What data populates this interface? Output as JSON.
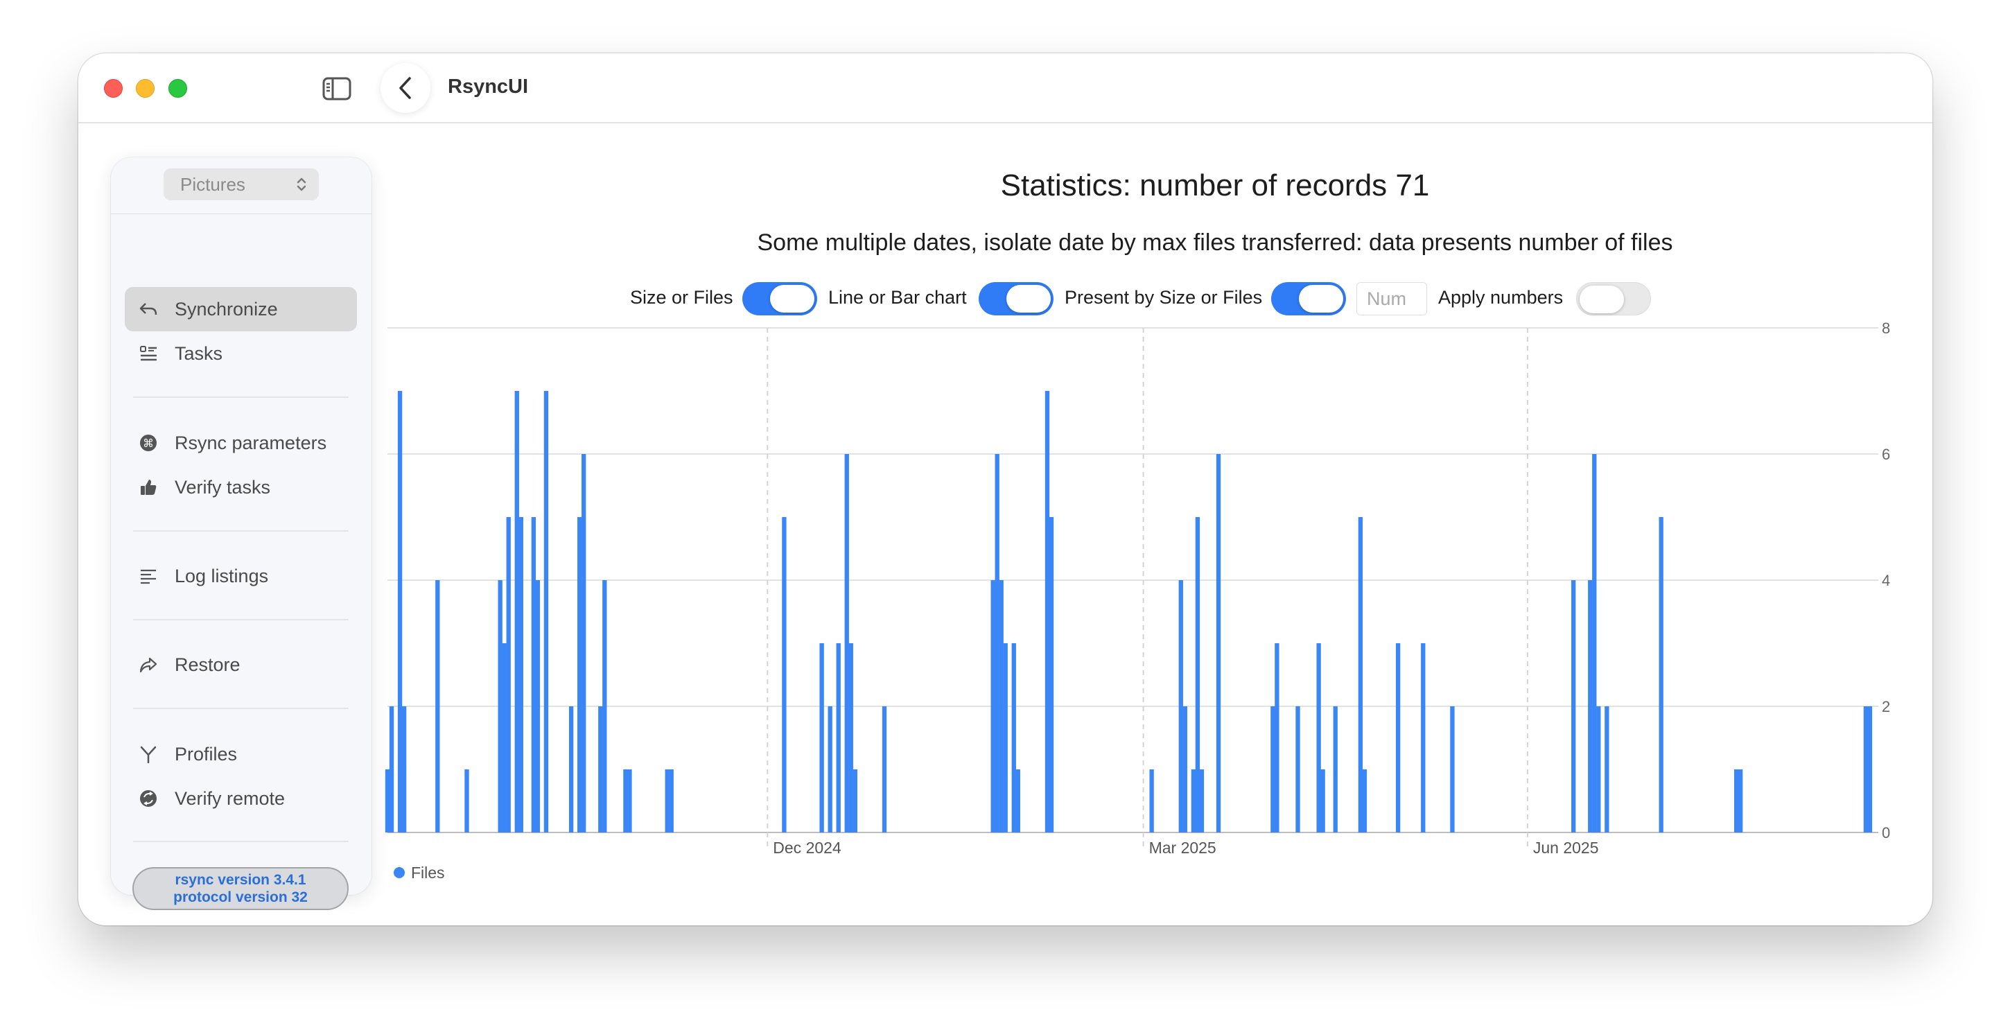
{
  "app": {
    "title": "RsyncUI"
  },
  "sidebar": {
    "profile_selected": "Pictures",
    "items": [
      {
        "label": "Synchronize",
        "icon": "sync-arrow-icon",
        "active": true
      },
      {
        "label": "Tasks",
        "icon": "checklist-icon"
      },
      {
        "label": "Rsync parameters",
        "icon": "command-icon"
      },
      {
        "label": "Verify tasks",
        "icon": "thumbs-up-icon"
      },
      {
        "label": "Log listings",
        "icon": "list-lines-icon"
      },
      {
        "label": "Restore",
        "icon": "share-arrow-icon"
      },
      {
        "label": "Profiles",
        "icon": "branch-icon"
      },
      {
        "label": "Verify remote",
        "icon": "sync-circle-icon"
      }
    ],
    "version_line1": "rsync  version 3.4.1",
    "version_line2": "protocol version 32"
  },
  "main": {
    "title": "Statistics: number of records 71",
    "subtitle": "Some multiple dates, isolate date by max files transferred:  data presents number of files",
    "controls": {
      "size_or_files_label": "Size or Files",
      "size_or_files_on": true,
      "line_or_bar_label": "Line or Bar chart",
      "line_or_bar_on": true,
      "present_by_label": "Present by Size or Files",
      "present_by_on": true,
      "num_placeholder": "Num",
      "apply_numbers_label": "Apply numbers",
      "apply_numbers_on": false
    }
  },
  "colors": {
    "accent": "#2f7cf6",
    "bar": "#3b86f7"
  },
  "chart_data": {
    "type": "bar",
    "legend": [
      "Files"
    ],
    "legend_position": "bottom-left",
    "x_tick_labels": [
      "Dec 2024",
      "Mar 2025",
      "Jun 2025"
    ],
    "x_ticks": [
      "2024-12-01",
      "2025-03-01",
      "2025-06-01"
    ],
    "xlim": [
      "2024-09-01",
      "2025-08-24"
    ],
    "y_ticks": [
      0,
      2,
      4,
      6,
      8
    ],
    "ylim": [
      0,
      8
    ],
    "grid": true,
    "y_axis_position": "right",
    "series": [
      {
        "name": "Files",
        "points": [
          {
            "x": "2024-09-01",
            "y": 1
          },
          {
            "x": "2024-09-02",
            "y": 2
          },
          {
            "x": "2024-09-04",
            "y": 7
          },
          {
            "x": "2024-09-05",
            "y": 2
          },
          {
            "x": "2024-09-13",
            "y": 4
          },
          {
            "x": "2024-09-20",
            "y": 1
          },
          {
            "x": "2024-09-28",
            "y": 4
          },
          {
            "x": "2024-09-29",
            "y": 3
          },
          {
            "x": "2024-09-30",
            "y": 5
          },
          {
            "x": "2024-10-02",
            "y": 7
          },
          {
            "x": "2024-10-03",
            "y": 5
          },
          {
            "x": "2024-10-06",
            "y": 5
          },
          {
            "x": "2024-10-07",
            "y": 4
          },
          {
            "x": "2024-10-09",
            "y": 7
          },
          {
            "x": "2024-10-15",
            "y": 2
          },
          {
            "x": "2024-10-17",
            "y": 5
          },
          {
            "x": "2024-10-18",
            "y": 6
          },
          {
            "x": "2024-10-22",
            "y": 2
          },
          {
            "x": "2024-10-23",
            "y": 4
          },
          {
            "x": "2024-10-28",
            "y": 1
          },
          {
            "x": "2024-10-29",
            "y": 1
          },
          {
            "x": "2024-11-07",
            "y": 1
          },
          {
            "x": "2024-11-08",
            "y": 1
          },
          {
            "x": "2024-12-05",
            "y": 5
          },
          {
            "x": "2024-12-14",
            "y": 3
          },
          {
            "x": "2024-12-16",
            "y": 2
          },
          {
            "x": "2024-12-18",
            "y": 3
          },
          {
            "x": "2024-12-20",
            "y": 6
          },
          {
            "x": "2024-12-21",
            "y": 3
          },
          {
            "x": "2024-12-22",
            "y": 1
          },
          {
            "x": "2024-12-29",
            "y": 2
          },
          {
            "x": "2025-01-24",
            "y": 4
          },
          {
            "x": "2025-01-25",
            "y": 6
          },
          {
            "x": "2025-01-26",
            "y": 4
          },
          {
            "x": "2025-01-27",
            "y": 3
          },
          {
            "x": "2025-01-29",
            "y": 3
          },
          {
            "x": "2025-01-30",
            "y": 1
          },
          {
            "x": "2025-02-06",
            "y": 7
          },
          {
            "x": "2025-02-07",
            "y": 5
          },
          {
            "x": "2025-03-03",
            "y": 1
          },
          {
            "x": "2025-03-10",
            "y": 4
          },
          {
            "x": "2025-03-11",
            "y": 2
          },
          {
            "x": "2025-03-13",
            "y": 1
          },
          {
            "x": "2025-03-14",
            "y": 5
          },
          {
            "x": "2025-03-15",
            "y": 1
          },
          {
            "x": "2025-03-19",
            "y": 6
          },
          {
            "x": "2025-04-01",
            "y": 2
          },
          {
            "x": "2025-04-02",
            "y": 3
          },
          {
            "x": "2025-04-07",
            "y": 2
          },
          {
            "x": "2025-04-12",
            "y": 3
          },
          {
            "x": "2025-04-13",
            "y": 1
          },
          {
            "x": "2025-04-16",
            "y": 2
          },
          {
            "x": "2025-04-22",
            "y": 5
          },
          {
            "x": "2025-04-23",
            "y": 1
          },
          {
            "x": "2025-05-01",
            "y": 3
          },
          {
            "x": "2025-05-07",
            "y": 3
          },
          {
            "x": "2025-05-14",
            "y": 2
          },
          {
            "x": "2025-06-12",
            "y": 4
          },
          {
            "x": "2025-06-16",
            "y": 4
          },
          {
            "x": "2025-06-17",
            "y": 6
          },
          {
            "x": "2025-06-18",
            "y": 2
          },
          {
            "x": "2025-06-20",
            "y": 2
          },
          {
            "x": "2025-07-03",
            "y": 5
          },
          {
            "x": "2025-07-21",
            "y": 1
          },
          {
            "x": "2025-07-22",
            "y": 1
          },
          {
            "x": "2025-08-21",
            "y": 2
          },
          {
            "x": "2025-08-22",
            "y": 2
          }
        ]
      }
    ]
  }
}
